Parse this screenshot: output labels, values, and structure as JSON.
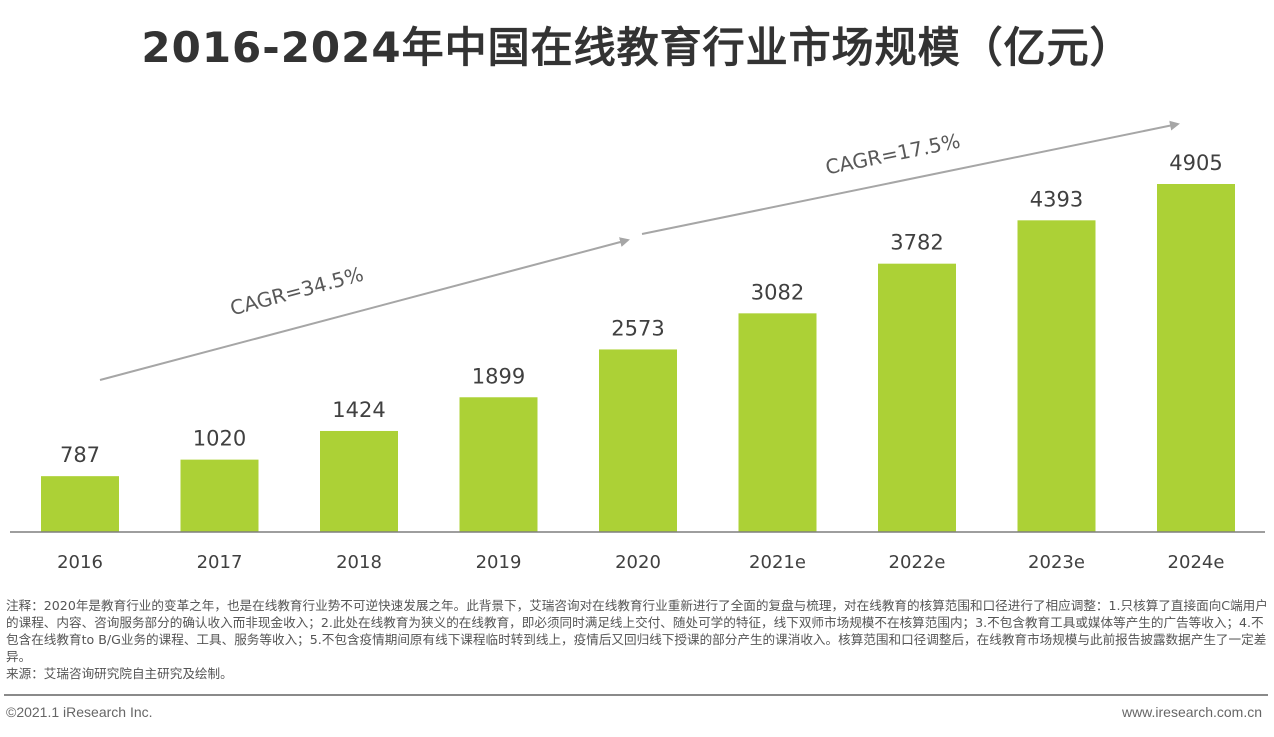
{
  "chart_data": {
    "type": "bar",
    "title": "2016-2024年中国在线教育行业市场规模（亿元）",
    "categories": [
      "2016",
      "2017",
      "2018",
      "2019",
      "2020",
      "2021e",
      "2022e",
      "2023e",
      "2024e"
    ],
    "values": [
      787,
      1020,
      1424,
      1899,
      2573,
      3082,
      3782,
      4393,
      4905
    ],
    "ylim": [
      0,
      4905
    ],
    "bar_color": "#acd136",
    "grid": false,
    "annotations": [
      {
        "text": "CAGR=34.5%",
        "from": "2016",
        "to": "2020"
      },
      {
        "text": "CAGR=17.5%",
        "from": "2020",
        "to": "2024e"
      }
    ]
  },
  "notes": {
    "note": "注释：2020年是教育行业的变革之年，也是在线教育行业势不可逆快速发展之年。此背景下，艾瑞咨询对在线教育行业重新进行了全面的复盘与梳理，对在线教育的核算范围和口径进行了相应调整：1.只核算了直接面向C端用户的课程、内容、咨询服务部分的确认收入而非现金收入；2.此处在线教育为狭义的在线教育，即必须同时满足线上交付、随处可学的特征，线下双师市场规模不在核算范围内；3.不包含教育工具或媒体等产生的广告等收入；4.不包含在线教育to B/G业务的课程、工具、服务等收入；5.不包含疫情期间原有线下课程临时转到线上，疫情后又回归线下授课的部分产生的课消收入。核算范围和口径调整后，在线教育市场规模与此前报告披露数据产生了一定差异。",
    "source": "来源：艾瑞咨询研究院自主研究及绘制。"
  },
  "footer": {
    "copyright": "©2021.1 iResearch Inc.",
    "website": "www.iresearch.com.cn"
  }
}
